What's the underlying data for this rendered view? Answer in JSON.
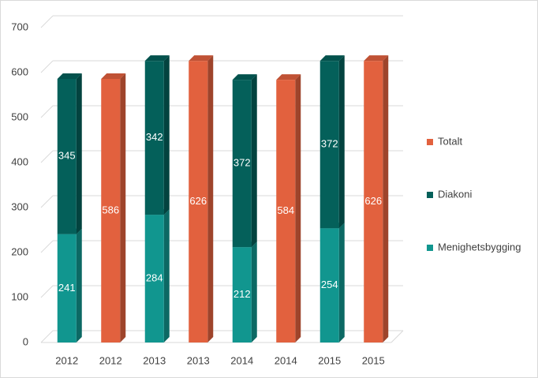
{
  "chart_data": {
    "type": "bar3d_stacked",
    "categories": [
      "2012",
      "2012",
      "2013",
      "2013",
      "2014",
      "2014",
      "2015",
      "2015"
    ],
    "series": [
      {
        "name": "Menighetsbygging",
        "color": "#11968f",
        "values": [
          241,
          null,
          284,
          null,
          212,
          null,
          254,
          null
        ]
      },
      {
        "name": "Diakoni",
        "color": "#04605a",
        "values": [
          345,
          null,
          342,
          null,
          372,
          null,
          372,
          null
        ]
      },
      {
        "name": "Totalt",
        "color": "#e2613e",
        "values": [
          null,
          586,
          null,
          626,
          null,
          584,
          null,
          626
        ]
      }
    ],
    "ylim": [
      0,
      700
    ],
    "yticks": [
      0,
      100,
      200,
      300,
      400,
      500,
      600,
      700
    ],
    "grid": true,
    "legend": "right"
  }
}
